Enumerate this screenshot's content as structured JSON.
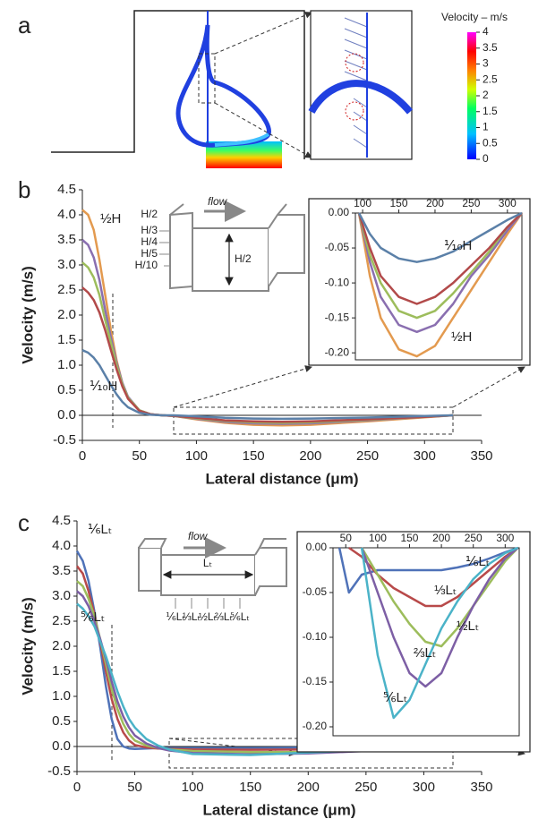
{
  "panels": [
    "a",
    "b",
    "c"
  ],
  "panel_a": {
    "colorbar_title": "Velocity – m/s",
    "colorbar_ticks": [
      0,
      0.5,
      1,
      1.5,
      2,
      2.5,
      3,
      3.5,
      4
    ]
  },
  "schematic_b": {
    "flow": "flow",
    "levels": [
      "H/2",
      "H/3",
      "H/4",
      "H/5",
      "H/10"
    ],
    "height": "H/2"
  },
  "schematic_c": {
    "flow": "flow",
    "length": "Lₜ",
    "positions": [
      "⅙Lₜ",
      "⅓Lₜ",
      "½Lₜ",
      "⅔Lₜ",
      "⅚Lₜ"
    ]
  },
  "chart_data": [
    {
      "type": "line",
      "ylabel": "Velocity (m/s)",
      "xlabel": "Lateral distance (μm)",
      "x": [
        0,
        5,
        10,
        15,
        20,
        25,
        30,
        35,
        40,
        50,
        60,
        70,
        80,
        100,
        125,
        150,
        175,
        200,
        250,
        300,
        325
      ],
      "series": [
        {
          "color": "#e39a4f",
          "values": [
            4.1,
            4.0,
            3.7,
            3.1,
            2.4,
            1.7,
            1.1,
            0.65,
            0.35,
            0.1,
            0.02,
            0,
            -0.01,
            -0.08,
            -0.15,
            -0.19,
            -0.2,
            -0.19,
            -0.12,
            -0.04,
            0
          ]
        },
        {
          "color": "#8a6fb0",
          "values": [
            3.5,
            3.4,
            3.15,
            2.7,
            2.1,
            1.55,
            1.05,
            0.65,
            0.37,
            0.1,
            0.02,
            0,
            -0.01,
            -0.07,
            -0.13,
            -0.16,
            -0.17,
            -0.16,
            -0.1,
            -0.03,
            0
          ]
        },
        {
          "color": "#9dbd5c",
          "values": [
            3.05,
            2.95,
            2.75,
            2.4,
            1.9,
            1.45,
            1.0,
            0.62,
            0.35,
            0.1,
            0.02,
            0,
            -0.01,
            -0.06,
            -0.11,
            -0.14,
            -0.15,
            -0.14,
            -0.09,
            -0.03,
            0
          ]
        },
        {
          "color": "#b24a4a",
          "values": [
            2.55,
            2.45,
            2.3,
            2.05,
            1.7,
            1.3,
            0.92,
            0.58,
            0.33,
            0.09,
            0.02,
            0,
            -0.01,
            -0.05,
            -0.1,
            -0.12,
            -0.13,
            -0.12,
            -0.08,
            -0.03,
            0
          ]
        },
        {
          "color": "#5b80a8",
          "values": [
            1.3,
            1.25,
            1.15,
            1.0,
            0.8,
            0.6,
            0.42,
            0.27,
            0.16,
            0.05,
            0.01,
            0,
            0,
            -0.02,
            -0.05,
            -0.065,
            -0.07,
            -0.065,
            -0.045,
            -0.015,
            0
          ]
        }
      ],
      "xlim": [
        0,
        350
      ],
      "xticks": [
        0,
        50,
        100,
        150,
        200,
        250,
        300,
        350
      ],
      "ylim": [
        -0.5,
        4.5
      ],
      "yticks": [
        -0.5,
        {
          "value": 0,
          "label": "0.0"
        },
        0.5,
        {
          "value": 1,
          "label": "1.0"
        },
        1.5,
        {
          "value": 2,
          "label": "2.0"
        },
        2.5,
        {
          "value": 3,
          "label": "3.0"
        },
        3.5,
        {
          "value": 4,
          "label": "4.0"
        },
        4.5
      ],
      "annotations": [
        "½H",
        "⅒H"
      ]
    },
    {
      "type": "line",
      "x": [
        95,
        110,
        125,
        150,
        175,
        200,
        225,
        250,
        275,
        300,
        320
      ],
      "series": [
        {
          "color": "#e39a4f",
          "values": [
            0,
            -0.09,
            -0.15,
            -0.195,
            -0.205,
            -0.19,
            -0.15,
            -0.11,
            -0.07,
            -0.03,
            0
          ]
        },
        {
          "color": "#8a6fb0",
          "values": [
            0,
            -0.07,
            -0.12,
            -0.16,
            -0.17,
            -0.16,
            -0.13,
            -0.09,
            -0.06,
            -0.025,
            0
          ]
        },
        {
          "color": "#9dbd5c",
          "values": [
            0,
            -0.06,
            -0.1,
            -0.14,
            -0.15,
            -0.14,
            -0.115,
            -0.085,
            -0.055,
            -0.02,
            0
          ]
        },
        {
          "color": "#b24a4a",
          "values": [
            0,
            -0.05,
            -0.09,
            -0.12,
            -0.13,
            -0.12,
            -0.1,
            -0.075,
            -0.05,
            -0.02,
            0
          ]
        },
        {
          "color": "#5b80a8",
          "values": [
            0,
            -0.03,
            -0.05,
            -0.065,
            -0.07,
            -0.065,
            -0.055,
            -0.04,
            -0.025,
            -0.01,
            0
          ]
        }
      ],
      "xlim": [
        90,
        320
      ],
      "xticks": [
        100,
        150,
        200,
        250,
        300
      ],
      "ylim": [
        -0.21,
        0
      ],
      "yticks": [
        {
          "value": 0,
          "label": "0.00"
        },
        -0.05,
        {
          "value": -0.1,
          "label": "-0.10"
        },
        -0.15,
        {
          "value": -0.2,
          "label": "-0.20"
        }
      ],
      "annotations": [
        "⅒H",
        "½H"
      ]
    },
    {
      "type": "line",
      "ylabel": "Velocity (m/s)",
      "xlabel": "Lateral distance (μm)",
      "x": [
        0,
        5,
        10,
        15,
        20,
        25,
        30,
        35,
        40,
        45,
        50,
        60,
        70,
        80,
        100,
        150,
        200,
        250,
        300,
        325
      ],
      "series": [
        {
          "color": "#4f72b8",
          "values": [
            3.9,
            3.7,
            3.3,
            2.7,
            2.0,
            1.2,
            0.55,
            0.15,
            0,
            -0.04,
            -0.05,
            -0.04,
            -0.03,
            -0.03,
            -0.03,
            -0.03,
            -0.025,
            -0.02,
            -0.01,
            0
          ]
        },
        {
          "color": "#b84a4a",
          "values": [
            3.6,
            3.45,
            3.1,
            2.65,
            2.1,
            1.5,
            0.95,
            0.55,
            0.28,
            0.12,
            0.03,
            -0.02,
            -0.04,
            -0.05,
            -0.06,
            -0.065,
            -0.06,
            -0.04,
            -0.015,
            0
          ]
        },
        {
          "color": "#9dbd5c",
          "values": [
            3.3,
            3.2,
            2.95,
            2.6,
            2.15,
            1.65,
            1.15,
            0.75,
            0.45,
            0.25,
            0.12,
            0.02,
            -0.03,
            -0.06,
            -0.09,
            -0.11,
            -0.11,
            -0.07,
            -0.03,
            0
          ]
        },
        {
          "color": "#7d5fa5",
          "values": [
            3.1,
            3.0,
            2.8,
            2.5,
            2.15,
            1.75,
            1.3,
            0.9,
            0.6,
            0.38,
            0.22,
            0.06,
            -0.03,
            -0.08,
            -0.13,
            -0.155,
            -0.14,
            -0.09,
            -0.04,
            0
          ]
        },
        {
          "color": "#4bb3c8",
          "values": [
            2.85,
            2.75,
            2.6,
            2.4,
            2.1,
            1.8,
            1.45,
            1.1,
            0.8,
            0.55,
            0.38,
            0.15,
            0.02,
            -0.06,
            -0.15,
            -0.17,
            -0.12,
            -0.07,
            -0.03,
            0
          ]
        }
      ],
      "xlim": [
        0,
        350
      ],
      "xticks": [
        0,
        50,
        100,
        150,
        200,
        250,
        300,
        350
      ],
      "ylim": [
        -0.5,
        4.5
      ],
      "yticks": [
        -0.5,
        {
          "value": 0,
          "label": "0.0"
        },
        0.5,
        {
          "value": 1,
          "label": "1.0"
        },
        1.5,
        {
          "value": 2,
          "label": "2.0"
        },
        2.5,
        {
          "value": 3,
          "label": "3.0"
        },
        3.5,
        {
          "value": 4,
          "label": "4.0"
        },
        4.5
      ],
      "annotations": [
        "⅙Lₜ",
        "⅚Lₜ"
      ]
    },
    {
      "type": "line",
      "x": [
        40,
        55,
        75,
        100,
        125,
        150,
        175,
        200,
        225,
        250,
        275,
        300,
        320
      ],
      "series": [
        {
          "color": "#4f72b8",
          "values": [
            0,
            -0.05,
            -0.03,
            -0.025,
            -0.025,
            -0.025,
            -0.025,
            -0.025,
            -0.022,
            -0.018,
            -0.012,
            -0.005,
            0
          ]
        },
        {
          "color": "#b84a4a",
          "values": [
            null,
            0,
            -0.01,
            -0.03,
            -0.045,
            -0.055,
            -0.065,
            -0.065,
            -0.055,
            -0.04,
            -0.025,
            -0.01,
            0
          ]
        },
        {
          "color": "#9dbd5c",
          "values": [
            null,
            null,
            0,
            -0.03,
            -0.06,
            -0.085,
            -0.105,
            -0.11,
            -0.09,
            -0.065,
            -0.04,
            -0.015,
            0
          ]
        },
        {
          "color": "#7d5fa5",
          "values": [
            null,
            null,
            0,
            -0.05,
            -0.1,
            -0.14,
            -0.155,
            -0.14,
            -0.1,
            -0.065,
            -0.035,
            -0.012,
            0
          ]
        },
        {
          "color": "#4bb3c8",
          "values": [
            null,
            null,
            0,
            -0.12,
            -0.19,
            -0.17,
            -0.13,
            -0.09,
            -0.06,
            -0.035,
            -0.018,
            -0.006,
            0
          ]
        }
      ],
      "xlim": [
        30,
        322
      ],
      "xticks": [
        50,
        100,
        150,
        200,
        250,
        300
      ],
      "ylim": [
        -0.21,
        0
      ],
      "yticks": [
        {
          "value": 0,
          "label": "0.00"
        },
        -0.05,
        {
          "value": -0.1,
          "label": "-0.10"
        },
        -0.15,
        {
          "value": -0.2,
          "label": "-0.20"
        }
      ],
      "annotations": [
        "⅙Lₜ",
        "⅓Lₜ",
        "½Lₜ",
        "⅔Lₜ",
        "⅚Lₜ"
      ]
    }
  ]
}
